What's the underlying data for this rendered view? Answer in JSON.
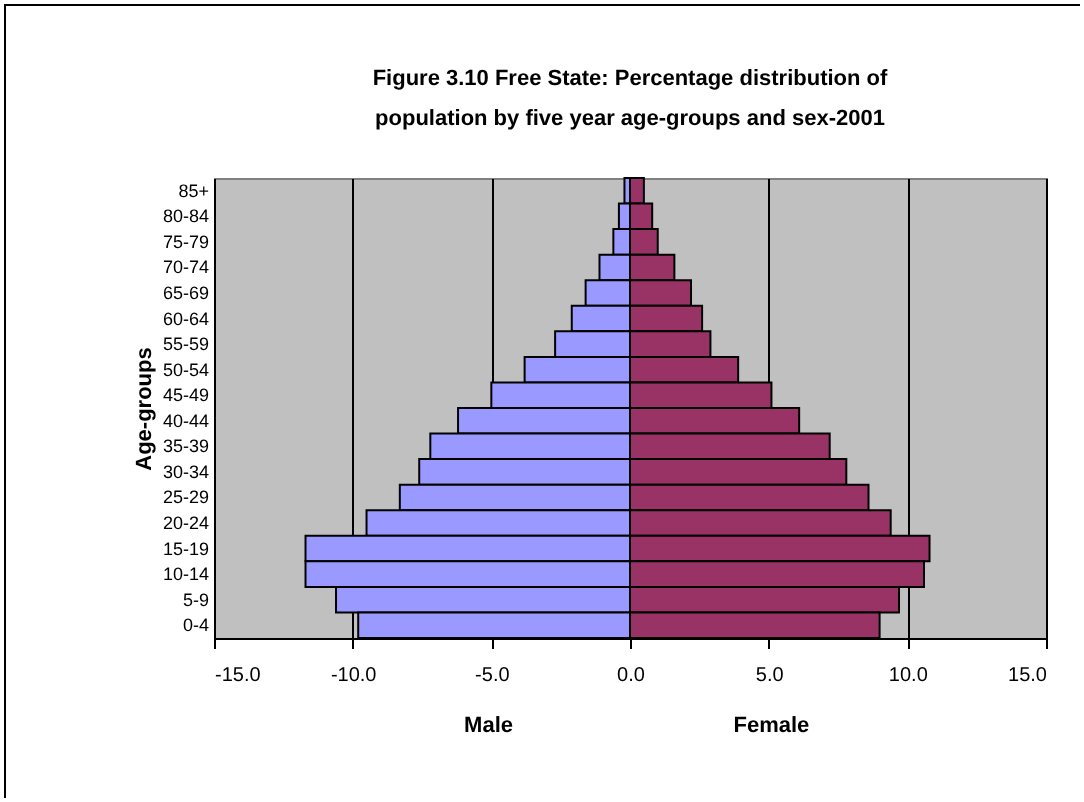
{
  "chart_data": {
    "type": "bar",
    "orientation": "horizontal",
    "stacked": true,
    "title": "Figure 3.10 Free State: Percentage distribution of population by five year age-groups and sex-2001",
    "ylabel": "Age-groups",
    "categories": [
      "85+",
      "80-84",
      "75-79",
      "70-74",
      "65-69",
      "60-64",
      "55-59",
      "50-54",
      "45-49",
      "40-44",
      "35-39",
      "30-34",
      "25-29",
      "20-24",
      "15-19",
      "10-14",
      "5-9",
      "0-4"
    ],
    "series": [
      {
        "color": "#9999ff",
        "values": [
          -0.2,
          -0.4,
          -0.6,
          -1.1,
          -1.6,
          -2.1,
          -2.7,
          -3.8,
          -5.0,
          -6.2,
          -7.2,
          -7.6,
          -8.3,
          -9.5,
          -11.7,
          -11.7,
          -10.6,
          -9.8
        ]
      },
      {
        "color": "#993366",
        "values": [
          0.5,
          0.8,
          1.0,
          1.6,
          2.2,
          2.6,
          2.9,
          3.9,
          5.1,
          6.1,
          7.2,
          7.8,
          8.6,
          9.4,
          10.8,
          10.6,
          9.7,
          9.0
        ]
      }
    ],
    "annotations": [
      "Male",
      "Female"
    ],
    "xlim": [
      -15,
      15
    ],
    "xticks": [
      {
        "value": -15,
        "label": "-15.0"
      },
      {
        "value": -10,
        "label": "-10.0"
      },
      {
        "value": -5,
        "label": "-5.0"
      },
      {
        "value": 0,
        "label": "0.0"
      },
      {
        "value": 5,
        "label": "5.0"
      },
      {
        "value": 10,
        "label": "10.0"
      },
      {
        "value": 15,
        "label": "15.0"
      }
    ],
    "grid": "x"
  }
}
